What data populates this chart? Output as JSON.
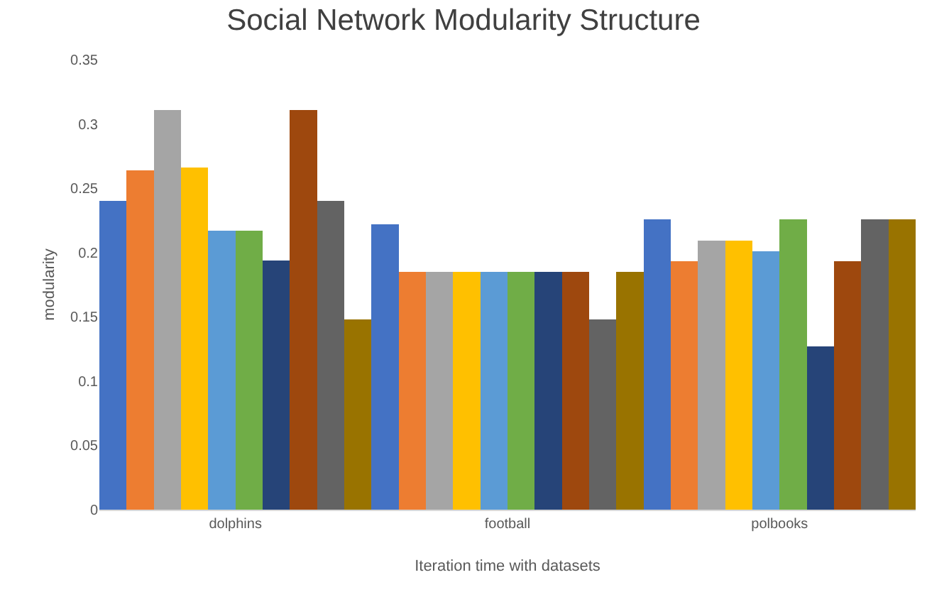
{
  "chart_data": {
    "type": "bar",
    "title": "Social Network Modularity Structure",
    "xlabel": "Iteration time with datasets",
    "ylabel": "modularity",
    "categories": [
      "dolphins",
      "football",
      "polbooks"
    ],
    "series": [
      {
        "color": "#4472c4",
        "values": [
          0.24,
          0.222,
          0.226
        ]
      },
      {
        "color": "#ed7d31",
        "values": [
          0.264,
          0.185,
          0.193
        ]
      },
      {
        "color": "#a5a5a5",
        "values": [
          0.311,
          0.185,
          0.209
        ]
      },
      {
        "color": "#ffc000",
        "values": [
          0.266,
          0.185,
          0.209
        ]
      },
      {
        "color": "#5b9bd5",
        "values": [
          0.217,
          0.185,
          0.201
        ]
      },
      {
        "color": "#70ad47",
        "values": [
          0.217,
          0.185,
          0.226
        ]
      },
      {
        "color": "#264478",
        "values": [
          0.194,
          0.185,
          0.127
        ]
      },
      {
        "color": "#9e480e",
        "values": [
          0.311,
          0.185,
          0.193
        ]
      },
      {
        "color": "#636363",
        "values": [
          0.24,
          0.148,
          0.226
        ]
      },
      {
        "color": "#997300",
        "values": [
          0.148,
          0.185,
          0.226
        ]
      }
    ],
    "ylim": [
      0,
      0.35
    ],
    "yticks": [
      0,
      0.05,
      0.1,
      0.15,
      0.2,
      0.25,
      0.3,
      0.35
    ]
  }
}
